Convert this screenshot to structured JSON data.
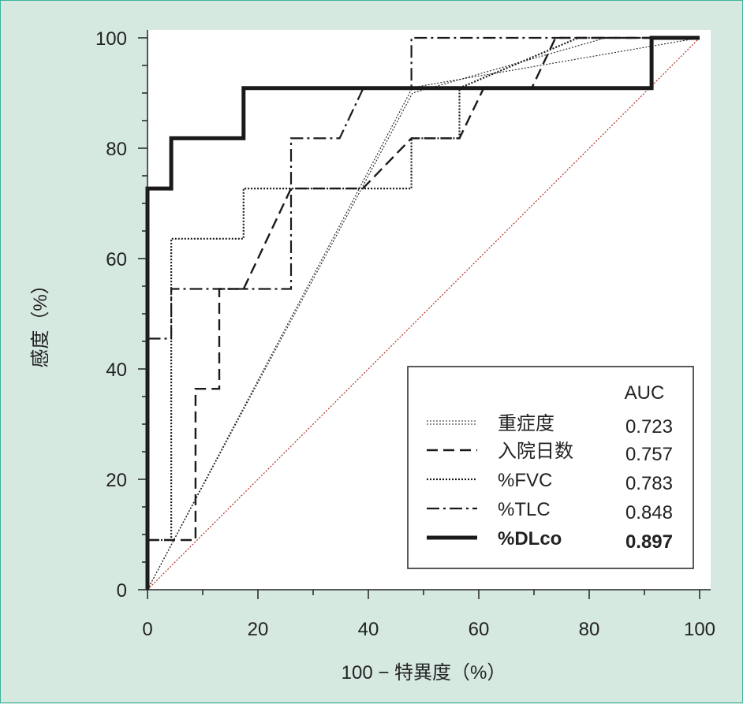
{
  "chart_data": {
    "type": "line",
    "chart_kind": "ROC curve",
    "xlabel": "100 − 特異度（%）",
    "ylabel": "感度（%）",
    "xlim": [
      0,
      100
    ],
    "ylim": [
      0,
      100
    ],
    "xticks": [
      "0",
      "20",
      "40",
      "60",
      "80",
      "100"
    ],
    "yticks": [
      "0",
      "20",
      "40",
      "60",
      "80",
      "100"
    ],
    "grid": false,
    "legend": {
      "placement": "bottom-right",
      "header": "AUC",
      "entries": [
        {
          "name": "重症度",
          "auc": "0.723",
          "style": "double-dotted"
        },
        {
          "name": "入院日数",
          "auc": "0.757",
          "style": "dashed"
        },
        {
          "name": "%FVC",
          "auc": "0.783",
          "style": "dotted"
        },
        {
          "name": "%TLC",
          "auc": "0.848",
          "style": "dash-dot"
        },
        {
          "name": "%DLco",
          "auc": "0.897",
          "style": "thick-solid",
          "bold": true
        }
      ]
    },
    "reference_line": {
      "points": [
        [
          0,
          0
        ],
        [
          100,
          100
        ]
      ],
      "color": "#b03020"
    },
    "series": [
      {
        "name": "重症度",
        "style": "double-dotted",
        "points": [
          [
            0,
            0
          ],
          [
            48,
            91
          ],
          [
            100,
            100
          ]
        ],
        "points_b": [
          [
            0,
            0
          ],
          [
            48,
            90
          ],
          [
            83,
            100
          ],
          [
            100,
            100
          ]
        ]
      },
      {
        "name": "入院日数",
        "style": "dashed",
        "points": [
          [
            0,
            0
          ],
          [
            0,
            9
          ],
          [
            8.7,
            9
          ],
          [
            8.7,
            36.4
          ],
          [
            13,
            36.4
          ],
          [
            13,
            54.5
          ],
          [
            17.4,
            54.5
          ],
          [
            21.7,
            63.6
          ],
          [
            26,
            72.7
          ],
          [
            39,
            72.7
          ],
          [
            47.8,
            81.8
          ],
          [
            56.5,
            81.8
          ],
          [
            60.9,
            90.9
          ],
          [
            69.6,
            90.9
          ],
          [
            73.9,
            100
          ],
          [
            100,
            100
          ]
        ]
      },
      {
        "name": "%FVC",
        "style": "dotted",
        "points": [
          [
            0,
            0
          ],
          [
            0,
            9
          ],
          [
            4.3,
            9
          ],
          [
            4.3,
            63.6
          ],
          [
            17.4,
            63.6
          ],
          [
            17.4,
            72.7
          ],
          [
            47.8,
            72.7
          ],
          [
            47.8,
            81.8
          ],
          [
            56.5,
            81.8
          ],
          [
            56.5,
            90.9
          ],
          [
            78,
            100
          ],
          [
            100,
            100
          ]
        ]
      },
      {
        "name": "%TLC",
        "style": "dash-dot",
        "points": [
          [
            0,
            0
          ],
          [
            0,
            45.5
          ],
          [
            4.3,
            45.5
          ],
          [
            4.3,
            54.5
          ],
          [
            26,
            54.5
          ],
          [
            26,
            81.8
          ],
          [
            34.8,
            81.8
          ],
          [
            39.1,
            90.9
          ],
          [
            47.8,
            90.9
          ],
          [
            47.8,
            100
          ],
          [
            100,
            100
          ]
        ]
      },
      {
        "name": "%DLco",
        "style": "thick-solid",
        "points": [
          [
            0,
            0
          ],
          [
            0,
            72.7
          ],
          [
            4.3,
            72.7
          ],
          [
            4.3,
            81.8
          ],
          [
            17.4,
            81.8
          ],
          [
            17.4,
            90.9
          ],
          [
            91.3,
            90.9
          ],
          [
            91.3,
            100
          ],
          [
            100,
            100
          ]
        ]
      }
    ]
  }
}
